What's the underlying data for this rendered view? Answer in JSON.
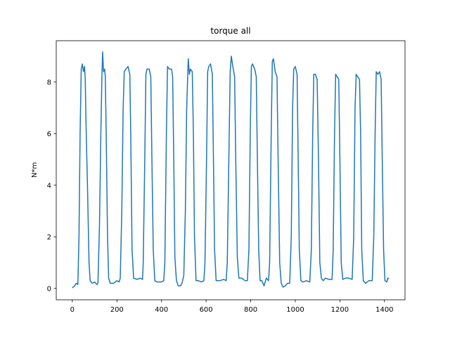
{
  "chart_data": {
    "type": "line",
    "title": "torque all",
    "y_label": "N*m",
    "color": "#1f77b4",
    "x": [
      0,
      10,
      18,
      25,
      30,
      35,
      40,
      45,
      50,
      55,
      58,
      62,
      68,
      75,
      80,
      90,
      100,
      110,
      115,
      122,
      128,
      133,
      136,
      140,
      145,
      148,
      152,
      158,
      163,
      170,
      185,
      200,
      210,
      215,
      222,
      228,
      233,
      240,
      250,
      258,
      262,
      268,
      275,
      290,
      305,
      315,
      318,
      325,
      330,
      335,
      345,
      352,
      357,
      363,
      370,
      380,
      400,
      410,
      415,
      422,
      427,
      435,
      445,
      450,
      455,
      460,
      467,
      475,
      485,
      492,
      500,
      507,
      513,
      520,
      525,
      530,
      538,
      543,
      548,
      555,
      565,
      580,
      590,
      595,
      602,
      607,
      612,
      620,
      628,
      633,
      638,
      645,
      660,
      680,
      690,
      695,
      702,
      708,
      713,
      720,
      728,
      733,
      740,
      747,
      760,
      775,
      785,
      792,
      798,
      803,
      808,
      818,
      825,
      830,
      836,
      842,
      850,
      860,
      870,
      880,
      885,
      892,
      897,
      902,
      910,
      918,
      923,
      930,
      937,
      945,
      955,
      965,
      975,
      982,
      988,
      993,
      1000,
      1008,
      1013,
      1018,
      1025,
      1035,
      1050,
      1065,
      1072,
      1078,
      1083,
      1090,
      1098,
      1104,
      1110,
      1117,
      1125,
      1135,
      1150,
      1165,
      1170,
      1176,
      1181,
      1188,
      1195,
      1200,
      1206,
      1213,
      1225,
      1240,
      1255,
      1262,
      1268,
      1273,
      1280,
      1288,
      1293,
      1298,
      1305,
      1315,
      1330,
      1345,
      1352,
      1358,
      1363,
      1370,
      1378,
      1385,
      1390,
      1396,
      1402,
      1410,
      1415,
      1420
    ],
    "values": [
      0.02,
      0.1,
      0.2,
      0.15,
      2,
      6,
      8.5,
      8.7,
      8.4,
      8.6,
      8.1,
      6.2,
      4,
      1,
      0.3,
      0.2,
      0.25,
      0.15,
      0.2,
      2.5,
      6,
      8.3,
      9.17,
      8.4,
      8.5,
      8.2,
      6,
      2,
      0.4,
      0.2,
      0.2,
      0.3,
      0.25,
      0.4,
      3,
      7,
      8.4,
      8.5,
      8.6,
      8.3,
      6,
      1.5,
      0.4,
      0.35,
      0.4,
      0.35,
      1,
      5,
      8.3,
      8.5,
      8.5,
      8.2,
      5,
      1.5,
      0.3,
      0.25,
      0.25,
      0.3,
      1,
      6,
      8.6,
      8.5,
      8.5,
      8.2,
      5,
      1.2,
      0.3,
      0.1,
      0.1,
      0.2,
      0.5,
      3,
      7,
      8.9,
      8.3,
      8.5,
      8.4,
      6,
      2,
      0.3,
      0.3,
      0.25,
      0.3,
      1,
      5,
      8.4,
      8.6,
      8.7,
      8.3,
      5,
      1.5,
      0.3,
      0.3,
      0.35,
      0.3,
      1,
      5,
      8.4,
      9,
      8.6,
      8.2,
      5,
      1.2,
      0.4,
      0.4,
      0.3,
      0.3,
      1.5,
      6,
      8.6,
      8.7,
      8.5,
      8.2,
      5,
      1.5,
      0.3,
      0.3,
      0.1,
      0.4,
      0.3,
      1,
      6,
      8.8,
      8.9,
      8.4,
      8.2,
      5,
      1,
      0.2,
      0.05,
      0.1,
      0.2,
      0.2,
      2,
      7,
      8.5,
      8.6,
      8.3,
      5,
      1.5,
      0.3,
      0.25,
      0.3,
      0.25,
      1.5,
      6,
      8.3,
      8.3,
      8.1,
      5,
      1,
      0.4,
      0.3,
      0.4,
      0.35,
      0.35,
      1.5,
      6,
      8.3,
      8.2,
      8.1,
      5,
      1,
      0.35,
      0.4,
      0.4,
      0.35,
      2,
      7,
      8.3,
      8.2,
      8.1,
      6,
      1.5,
      0.3,
      0.2,
      0.3,
      0.3,
      2,
      6,
      8.4,
      8.3,
      8.4,
      8.1,
      5,
      1.5,
      0.3,
      0.25,
      0.4,
      0.38
    ],
    "xlim": [
      -72,
      1492
    ],
    "ylim": [
      -0.44,
      9.6
    ],
    "xticks": [
      0,
      200,
      400,
      600,
      800,
      1000,
      1200,
      1400
    ],
    "yticks": [
      0,
      2,
      4,
      6,
      8
    ]
  }
}
